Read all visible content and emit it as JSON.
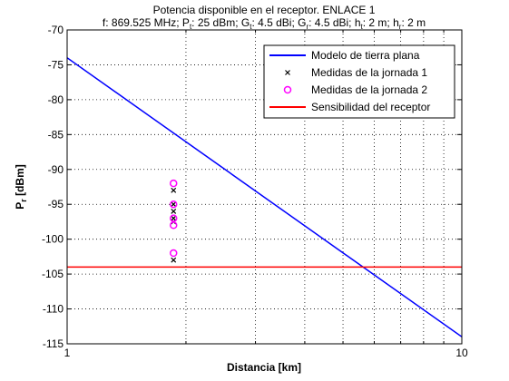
{
  "chart_data": {
    "type": "line",
    "title": "Potencia disponible en el receptor. ENLACE 1",
    "subtitle_parts": [
      {
        "t": "f: 869.525 MHz; P",
        "sub": false
      },
      {
        "t": "t",
        "sub": true
      },
      {
        "t": ": 25 dBm; G",
        "sub": false
      },
      {
        "t": "t",
        "sub": true
      },
      {
        "t": ": 4.5 dBi; G",
        "sub": false
      },
      {
        "t": "r",
        "sub": true
      },
      {
        "t": ": 4.5 dBi; h",
        "sub": false
      },
      {
        "t": "t",
        "sub": true
      },
      {
        "t": ": 2 m; h",
        "sub": false
      },
      {
        "t": "r",
        "sub": true
      },
      {
        "t": ": 2 m",
        "sub": false
      }
    ],
    "xlabel": "Distancia [km]",
    "ylabel_main": "P",
    "ylabel_sub": "r",
    "ylabel_rest": " [dBm]",
    "xscale": "log",
    "xlim": [
      1,
      10
    ],
    "ylim": [
      -115,
      -70
    ],
    "x_ticks": [
      1,
      10
    ],
    "x_minor_ticks": [
      2,
      3,
      4,
      5,
      6,
      7,
      8,
      9
    ],
    "y_ticks": [
      -70,
      -75,
      -80,
      -85,
      -90,
      -95,
      -100,
      -105,
      -110,
      -115
    ],
    "grid": true,
    "legend_position": "top-right",
    "series": [
      {
        "name": "Modelo de tierra plana",
        "kind": "line",
        "color": "#0000ff",
        "x": [
          1,
          10
        ],
        "y": [
          -74,
          -114
        ]
      },
      {
        "name": "Medidas de la jornada 1",
        "kind": "marker-x",
        "color": "#000000",
        "x": [
          1.86,
          1.86,
          1.86,
          1.86,
          1.86,
          1.86
        ],
        "y": [
          -93,
          -95,
          -96,
          -97,
          -97.5,
          -103
        ]
      },
      {
        "name": "Medidas de la jornada 2",
        "kind": "marker-o",
        "color": "#ff00ff",
        "x": [
          1.86,
          1.86,
          1.86,
          1.86,
          1.86
        ],
        "y": [
          -92,
          -95,
          -97,
          -98,
          -102
        ]
      },
      {
        "name": "Sensibilidad del receptor",
        "kind": "line",
        "color": "#ff0000",
        "x": [
          1,
          10
        ],
        "y": [
          -104,
          -104
        ]
      }
    ]
  }
}
